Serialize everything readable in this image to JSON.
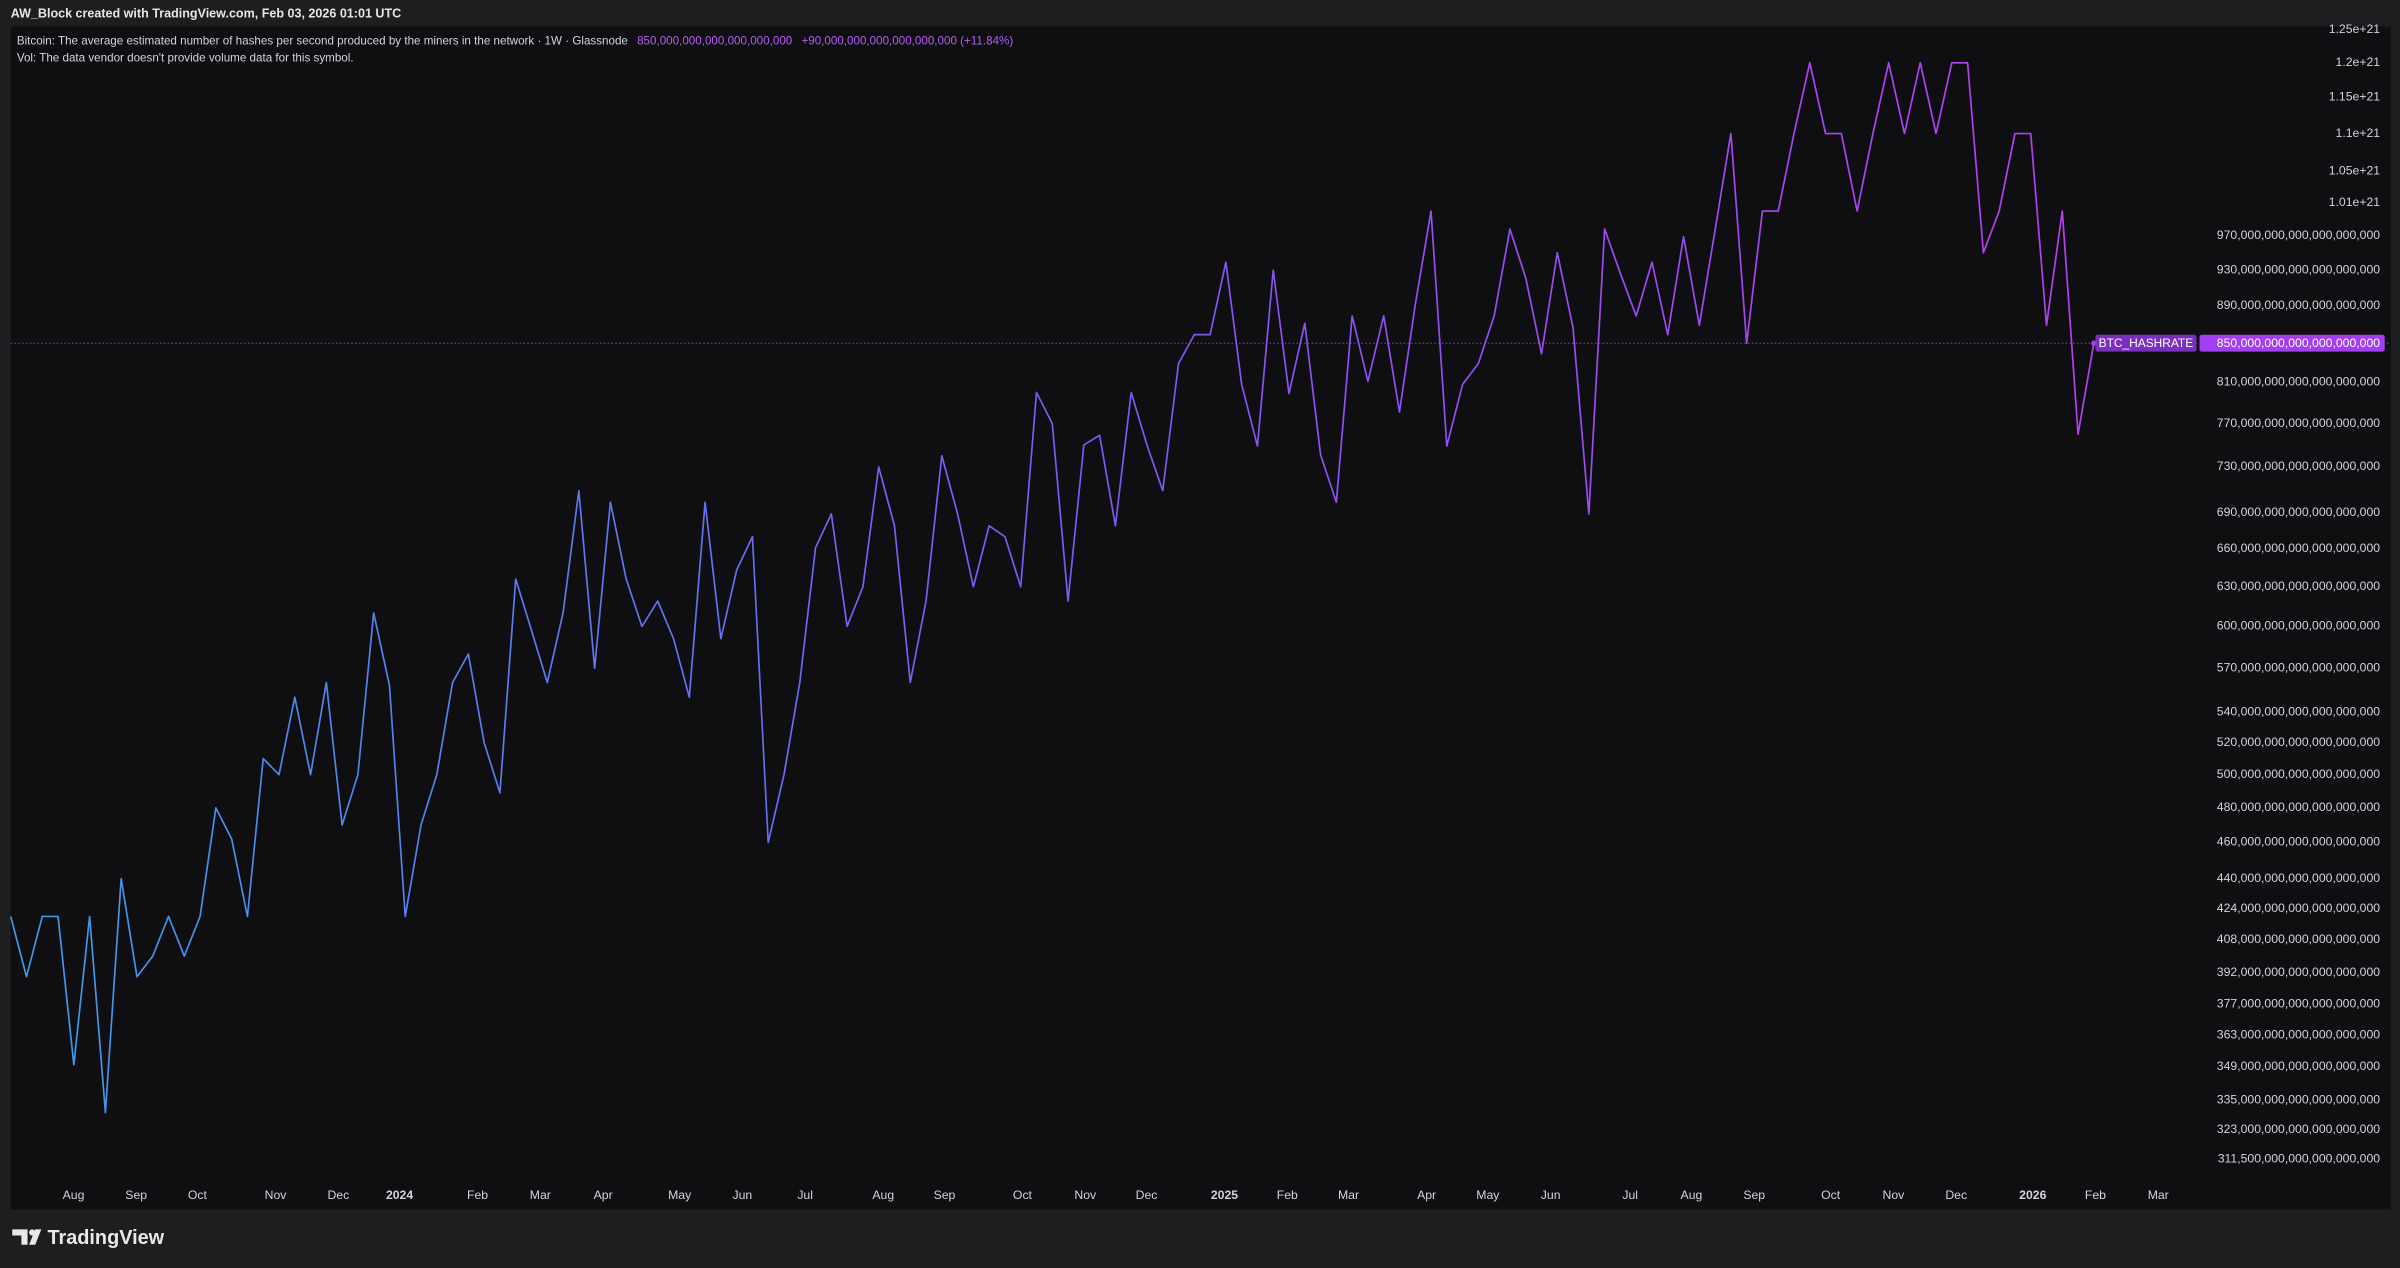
{
  "header": {
    "credit": "AW_Block created with TradingView.com, Feb 03, 2026 01:01 UTC"
  },
  "footer": {
    "brand": "TradingView"
  },
  "chart_data": {
    "type": "line",
    "legend": {
      "description": "Bitcoin: The average estimated number of hashes per second produced by the miners in the network · 1W · Glassnode",
      "value": "850,000,000,000,000,000,000",
      "change": "+90,000,000,000,000,000,000 (+11.84%)",
      "volume_note": "Vol: The data vendor doesn't provide volume data for this symbol."
    },
    "series": [
      {
        "name": "BTC_HASHRATE",
        "color": "#a43ef2",
        "line_gradient": [
          "#3d9ae8",
          "#7a5af5",
          "#b83ef0"
        ],
        "values": [
          4.2e+20,
          3.9e+20,
          4.2e+20,
          4.2e+20,
          3.5e+20,
          4.2e+20,
          3.3e+20,
          4.4e+20,
          3.9e+20,
          4e+20,
          4.2e+20,
          4e+20,
          4.2e+20,
          4.8e+20,
          4.62e+20,
          4.2e+20,
          5.1e+20,
          5e+20,
          5.5e+20,
          5e+20,
          5.6e+20,
          4.7e+20,
          5e+20,
          6.1e+20,
          5.58e+20,
          4.2e+20,
          4.7e+20,
          5e+20,
          5.6e+20,
          5.8e+20,
          5.2e+20,
          4.89e+20,
          6.36e+20,
          5.97e+20,
          5.6e+20,
          6.1e+20,
          7.09e+20,
          5.7e+20,
          6.99e+20,
          6.36e+20,
          6e+20,
          6.19e+20,
          5.91e+20,
          5.5e+20,
          6.99e+20,
          5.91e+20,
          6.43e+20,
          6.7e+20,
          4.6e+20,
          5e+20,
          5.6e+20,
          6.61e+20,
          6.89e+20,
          6e+20,
          6.3e+20,
          7.3e+20,
          6.79e+20,
          5.6e+20,
          6.19e+20,
          7.4e+20,
          6.89e+20,
          6.3e+20,
          6.79e+20,
          6.7e+20,
          6.3e+20,
          8e+20,
          7.7e+20,
          6.19e+20,
          7.5e+20,
          7.59e+20,
          6.79e+20,
          8e+20,
          7.5e+20,
          7.09e+20,
          8.29e+20,
          8.59e+20,
          8.59e+20,
          9.39e+20,
          8.08e+20,
          7.49e+20,
          9.3e+20,
          7.99e+20,
          8.71e+20,
          7.41e+20,
          6.99e+20,
          8.79e+20,
          8.11e+20,
          8.79e+20,
          7.81e+20,
          8.91e+20,
          1e+21,
          7.49e+20,
          8.08e+20,
          8.29e+20,
          8.79e+20,
          9.78e+20,
          9.21e+20,
          8.39e+20,
          9.5e+20,
          8.66e+20,
          6.89e+20,
          9.78e+20,
          9.26e+20,
          8.79e+20,
          9.39e+20,
          8.59e+20,
          9.69e+20,
          8.69e+20,
          9.77e+20,
          1.1e+21,
          8.5e+20,
          1e+21,
          1e+21,
          1.1e+21,
          1.2e+21,
          1.1e+21,
          1.1e+21,
          1e+21,
          1.1e+21,
          1.2e+21,
          1.1e+21,
          1.2e+21,
          1.1e+21,
          1.2e+21,
          1.2e+21,
          9.5e+20,
          1e+21,
          1.1e+21,
          1.1e+21,
          8.69e+20,
          1e+21,
          7.6e+20,
          8.5e+20
        ]
      }
    ],
    "log_scale": true,
    "grid": false,
    "xlim": [
      0,
      138.5
    ],
    "xticks": [
      {
        "value": 3.98,
        "label": "Aug"
      },
      {
        "value": 7.95,
        "label": "Sep"
      },
      {
        "value": 11.83,
        "label": "Oct"
      },
      {
        "value": 16.78,
        "label": "Nov"
      },
      {
        "value": 20.76,
        "label": "Dec"
      },
      {
        "value": 24.64,
        "label": "2024"
      },
      {
        "value": 29.58,
        "label": "Feb"
      },
      {
        "value": 33.56,
        "label": "Mar"
      },
      {
        "value": 37.54,
        "label": "Apr"
      },
      {
        "value": 42.39,
        "label": "May"
      },
      {
        "value": 46.36,
        "label": "Jun"
      },
      {
        "value": 50.34,
        "label": "Jul"
      },
      {
        "value": 55.29,
        "label": "Aug"
      },
      {
        "value": 59.17,
        "label": "Sep"
      },
      {
        "value": 64.11,
        "label": "Oct"
      },
      {
        "value": 68.09,
        "label": "Nov"
      },
      {
        "value": 71.97,
        "label": "Dec"
      },
      {
        "value": 76.91,
        "label": "2025"
      },
      {
        "value": 80.89,
        "label": "Feb"
      },
      {
        "value": 84.77,
        "label": "Mar"
      },
      {
        "value": 89.72,
        "label": "Apr"
      },
      {
        "value": 93.6,
        "label": "May"
      },
      {
        "value": 97.58,
        "label": "Jun"
      },
      {
        "value": 102.62,
        "label": "Jul"
      },
      {
        "value": 106.5,
        "label": "Aug"
      },
      {
        "value": 110.48,
        "label": "Sep"
      },
      {
        "value": 115.32,
        "label": "Oct"
      },
      {
        "value": 119.3,
        "label": "Nov"
      },
      {
        "value": 123.28,
        "label": "Dec"
      },
      {
        "value": 128.13,
        "label": "2026"
      },
      {
        "value": 132.1,
        "label": "Feb"
      },
      {
        "value": 136.08,
        "label": "Mar"
      }
    ],
    "ylim": [
      3.03e+20,
      1.255e+21
    ],
    "yticks": [
      {
        "value": 1.25e+21,
        "label": "1.25e+21"
      },
      {
        "value": 1.2e+21,
        "label": "1.2e+21"
      },
      {
        "value": 1.15e+21,
        "label": "1.15e+21"
      },
      {
        "value": 1.1e+21,
        "label": "1.1e+21"
      },
      {
        "value": 1.05e+21,
        "label": "1.05e+21"
      },
      {
        "value": 1.01e+21,
        "label": "1.01e+21"
      },
      {
        "value": 9.7e+20,
        "label": "970,000,000,000,000,000,000"
      },
      {
        "value": 9.3e+20,
        "label": "930,000,000,000,000,000,000"
      },
      {
        "value": 8.9e+20,
        "label": "890,000,000,000,000,000,000"
      },
      {
        "value": 8.1e+20,
        "label": "810,000,000,000,000,000,000"
      },
      {
        "value": 7.7e+20,
        "label": "770,000,000,000,000,000,000"
      },
      {
        "value": 7.3e+20,
        "label": "730,000,000,000,000,000,000"
      },
      {
        "value": 6.9e+20,
        "label": "690,000,000,000,000,000,000"
      },
      {
        "value": 6.6e+20,
        "label": "660,000,000,000,000,000,000"
      },
      {
        "value": 6.3e+20,
        "label": "630,000,000,000,000,000,000"
      },
      {
        "value": 6e+20,
        "label": "600,000,000,000,000,000,000"
      },
      {
        "value": 5.7e+20,
        "label": "570,000,000,000,000,000,000"
      },
      {
        "value": 5.4e+20,
        "label": "540,000,000,000,000,000,000"
      },
      {
        "value": 5.2e+20,
        "label": "520,000,000,000,000,000,000"
      },
      {
        "value": 5e+20,
        "label": "500,000,000,000,000,000,000"
      },
      {
        "value": 4.8e+20,
        "label": "480,000,000,000,000,000,000"
      },
      {
        "value": 4.6e+20,
        "label": "460,000,000,000,000,000,000"
      },
      {
        "value": 4.4e+20,
        "label": "440,000,000,000,000,000,000"
      },
      {
        "value": 4.24e+20,
        "label": "424,000,000,000,000,000,000"
      },
      {
        "value": 4.08e+20,
        "label": "408,000,000,000,000,000,000"
      },
      {
        "value": 3.92e+20,
        "label": "392,000,000,000,000,000,000"
      },
      {
        "value": 3.77e+20,
        "label": "377,000,000,000,000,000,000"
      },
      {
        "value": 3.63e+20,
        "label": "363,000,000,000,000,000,000"
      },
      {
        "value": 3.49e+20,
        "label": "349,000,000,000,000,000,000"
      },
      {
        "value": 3.35e+20,
        "label": "335,000,000,000,000,000,000"
      },
      {
        "value": 3.23e+20,
        "label": "323,000,000,000,000,000,000"
      },
      {
        "value": 3.115e+20,
        "label": "311,500,000,000,000,000,000"
      }
    ]
  }
}
